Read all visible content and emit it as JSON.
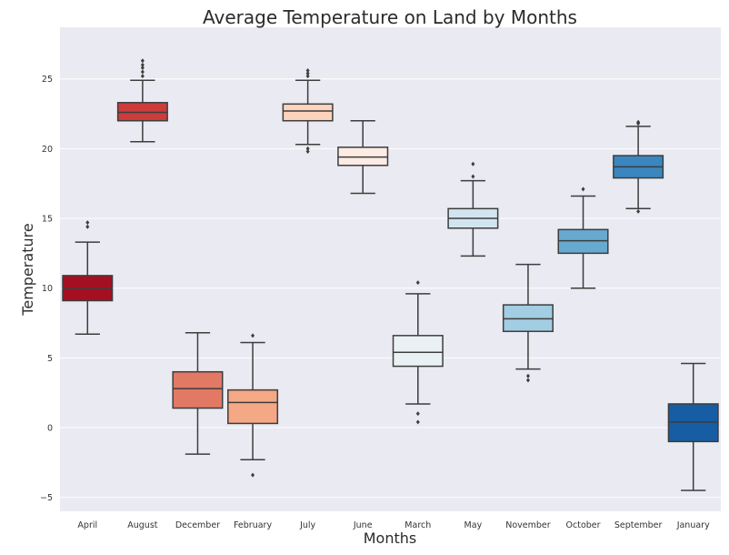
{
  "chart_data": {
    "type": "box",
    "title": "Average Temperature on Land by Months",
    "xlabel": "Months",
    "ylabel": "Temperature",
    "ylim": [
      -6.0,
      28.7
    ],
    "yticks": [
      -5,
      0,
      5,
      10,
      15,
      20,
      25
    ],
    "ytick_labels": [
      "−5",
      "0",
      "5",
      "10",
      "15",
      "20",
      "25"
    ],
    "grid": true,
    "legend": "none",
    "series": [
      {
        "category": "April",
        "color": "#a50f22",
        "whisker_low": 6.7,
        "q1": 9.1,
        "median": 10.0,
        "q3": 10.9,
        "whisker_high": 13.3,
        "outliers": [
          14.4,
          14.7
        ]
      },
      {
        "category": "August",
        "color": "#cb3c3b",
        "whisker_low": 20.5,
        "q1": 22.0,
        "median": 22.6,
        "q3": 23.3,
        "whisker_high": 24.9,
        "outliers": [
          25.2,
          25.5,
          25.8,
          26.0,
          26.3
        ]
      },
      {
        "category": "December",
        "color": "#e27965",
        "whisker_low": -1.9,
        "q1": 1.4,
        "median": 2.8,
        "q3": 4.0,
        "whisker_high": 6.8,
        "outliers": []
      },
      {
        "category": "February",
        "color": "#f5a885",
        "whisker_low": -2.3,
        "q1": 0.3,
        "median": 1.8,
        "q3": 2.7,
        "whisker_high": 6.1,
        "outliers": [
          6.6,
          -3.4
        ]
      },
      {
        "category": "July",
        "color": "#fcd3bd",
        "whisker_low": 20.3,
        "q1": 22.0,
        "median": 22.7,
        "q3": 23.2,
        "whisker_high": 24.9,
        "outliers": [
          25.2,
          25.4,
          25.6,
          20.0,
          19.8
        ]
      },
      {
        "category": "June",
        "color": "#fcece3",
        "whisker_low": 16.8,
        "q1": 18.8,
        "median": 19.4,
        "q3": 20.1,
        "whisker_high": 22.0,
        "outliers": []
      },
      {
        "category": "March",
        "color": "#eaf1f5",
        "whisker_low": 1.7,
        "q1": 4.4,
        "median": 5.4,
        "q3": 6.6,
        "whisker_high": 9.6,
        "outliers": [
          10.4,
          1.0,
          0.4
        ]
      },
      {
        "category": "May",
        "color": "#d1e5f0",
        "whisker_low": 12.3,
        "q1": 14.3,
        "median": 15.0,
        "q3": 15.7,
        "whisker_high": 17.7,
        "outliers": [
          18.0,
          18.9
        ]
      },
      {
        "category": "November",
        "color": "#a2cde3",
        "whisker_low": 4.2,
        "q1": 6.9,
        "median": 7.8,
        "q3": 8.8,
        "whisker_high": 11.7,
        "outliers": [
          3.7,
          3.4
        ]
      },
      {
        "category": "October",
        "color": "#67a9cf",
        "whisker_low": 10.0,
        "q1": 12.5,
        "median": 13.4,
        "q3": 14.2,
        "whisker_high": 16.6,
        "outliers": [
          17.1
        ]
      },
      {
        "category": "September",
        "color": "#3a86bf",
        "whisker_low": 15.7,
        "q1": 17.9,
        "median": 18.7,
        "q3": 19.5,
        "whisker_high": 21.6,
        "outliers": [
          21.8,
          21.9,
          15.5
        ]
      },
      {
        "category": "January",
        "color": "#175da4",
        "whisker_low": -4.5,
        "q1": -1.0,
        "median": 0.4,
        "q3": 1.7,
        "whisker_high": 4.6,
        "outliers": []
      }
    ]
  }
}
